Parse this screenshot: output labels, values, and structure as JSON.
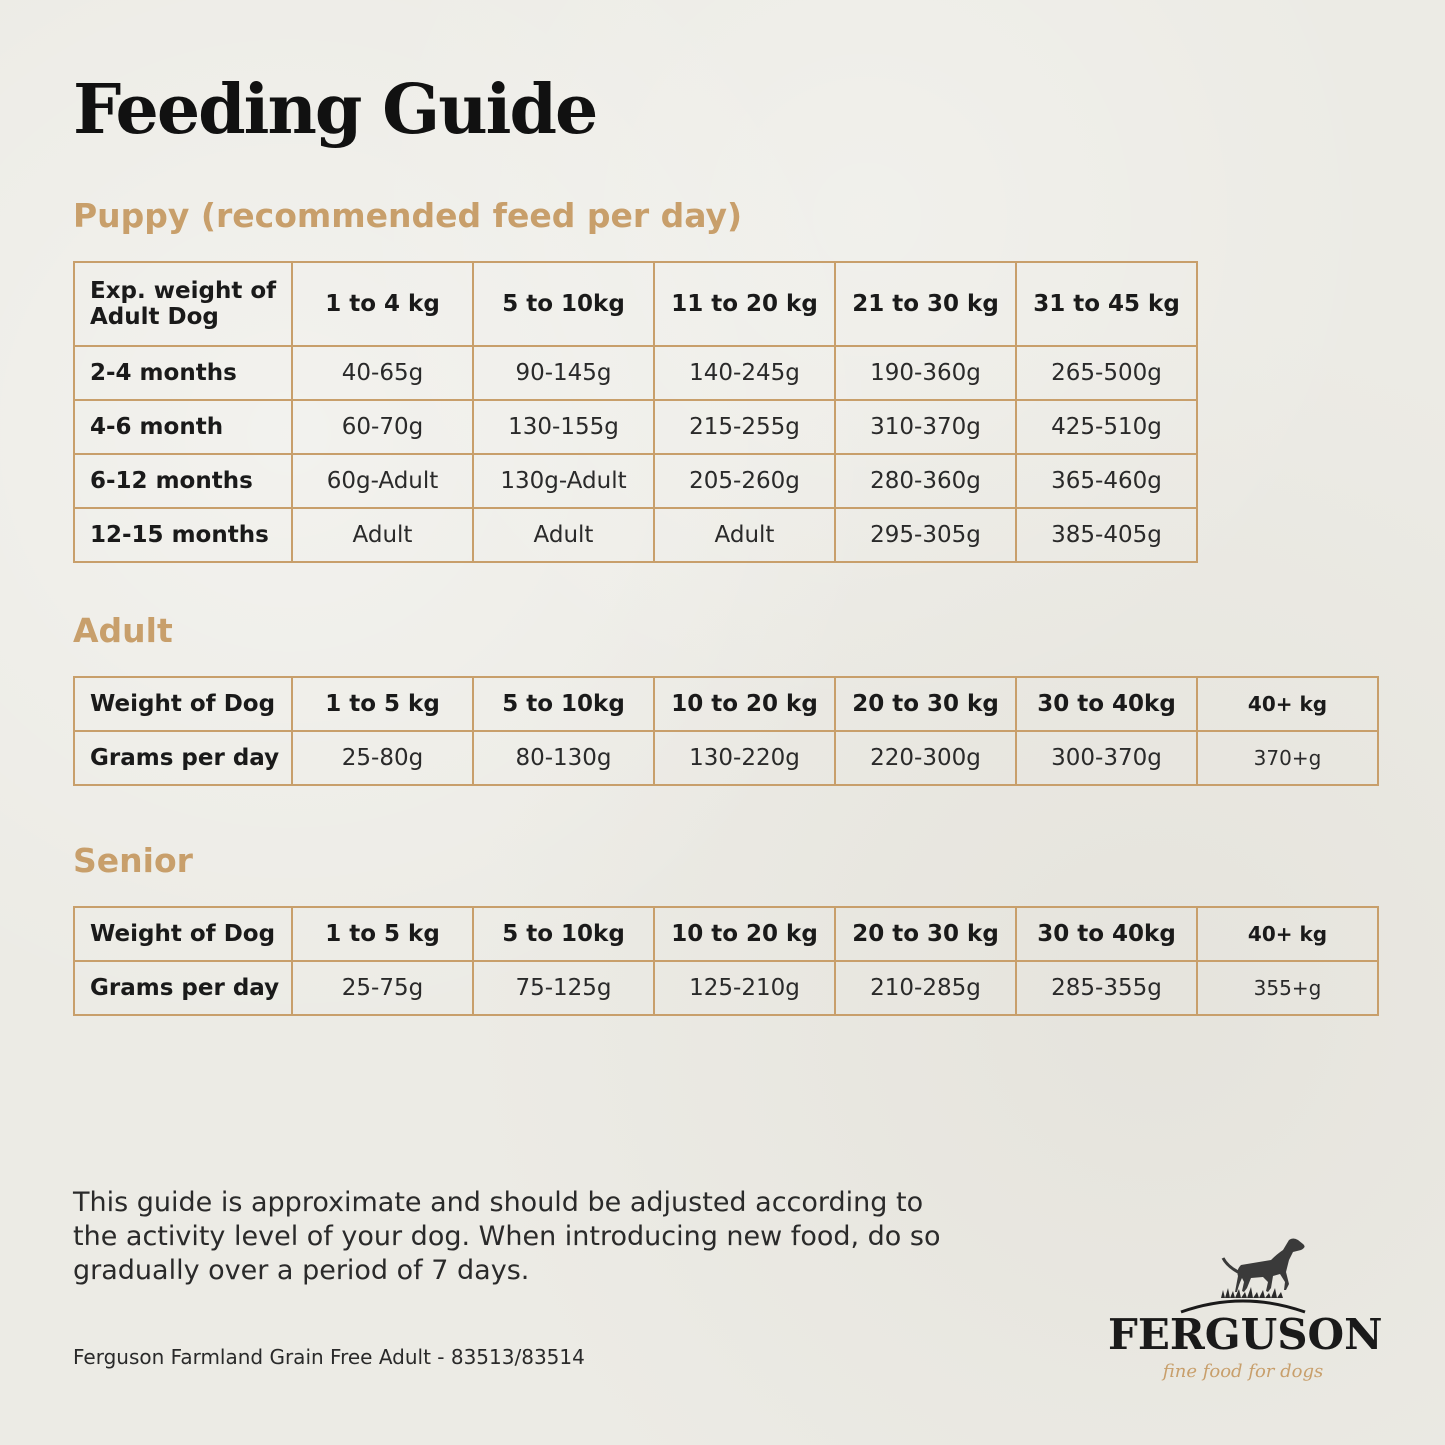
{
  "title": "Feeding Guide",
  "puppy": {
    "heading": "Puppy (recommended feed per day)",
    "header": [
      "Exp. weight of Adult Dog",
      "1 to 4 kg",
      "5 to 10kg",
      "11 to 20 kg",
      "21 to 30 kg",
      "31 to 45 kg"
    ],
    "rows": [
      [
        "2-4 months",
        "40-65g",
        "90-145g",
        "140-245g",
        "190-360g",
        "265-500g"
      ],
      [
        "4-6 month",
        "60-70g",
        "130-155g",
        "215-255g",
        "310-370g",
        "425-510g"
      ],
      [
        "6-12 months",
        "60g-Adult",
        "130g-Adult",
        "205-260g",
        "280-360g",
        "365-460g"
      ],
      [
        "12-15 months",
        "Adult",
        "Adult",
        "Adult",
        "295-305g",
        "385-405g"
      ]
    ]
  },
  "adult": {
    "heading": "Adult",
    "header": [
      "Weight of Dog",
      "1 to 5 kg",
      "5 to 10kg",
      "10 to 20 kg",
      "20 to 30 kg",
      "30 to 40kg",
      "40+ kg"
    ],
    "rows": [
      [
        "Grams per day",
        "25-80g",
        "80-130g",
        "130-220g",
        "220-300g",
        "300-370g",
        "370+g"
      ]
    ]
  },
  "senior": {
    "heading": "Senior",
    "header": [
      "Weight of Dog",
      "1 to 5 kg",
      "5 to 10kg",
      "10 to 20 kg",
      "20 to 30 kg",
      "30 to 40kg",
      "40+ kg"
    ],
    "rows": [
      [
        "Grams per day",
        "25-75g",
        "75-125g",
        "125-210g",
        "210-285g",
        "285-355g",
        "355+g"
      ]
    ]
  },
  "note": "This guide is approximate and should be adjusted according to the activity level of your dog. When introducing new food, do so gradually over a period of 7 days.",
  "footer": "Ferguson Farmland Grain Free Adult - 83513/83514",
  "logo": {
    "brand": "FERGUSON",
    "tagline": "fine food for dogs",
    "icon": "pointer-dog-icon"
  },
  "colors": {
    "accent": "#c89f6b",
    "text": "#1e1e1e",
    "background": "#ecebe5"
  }
}
